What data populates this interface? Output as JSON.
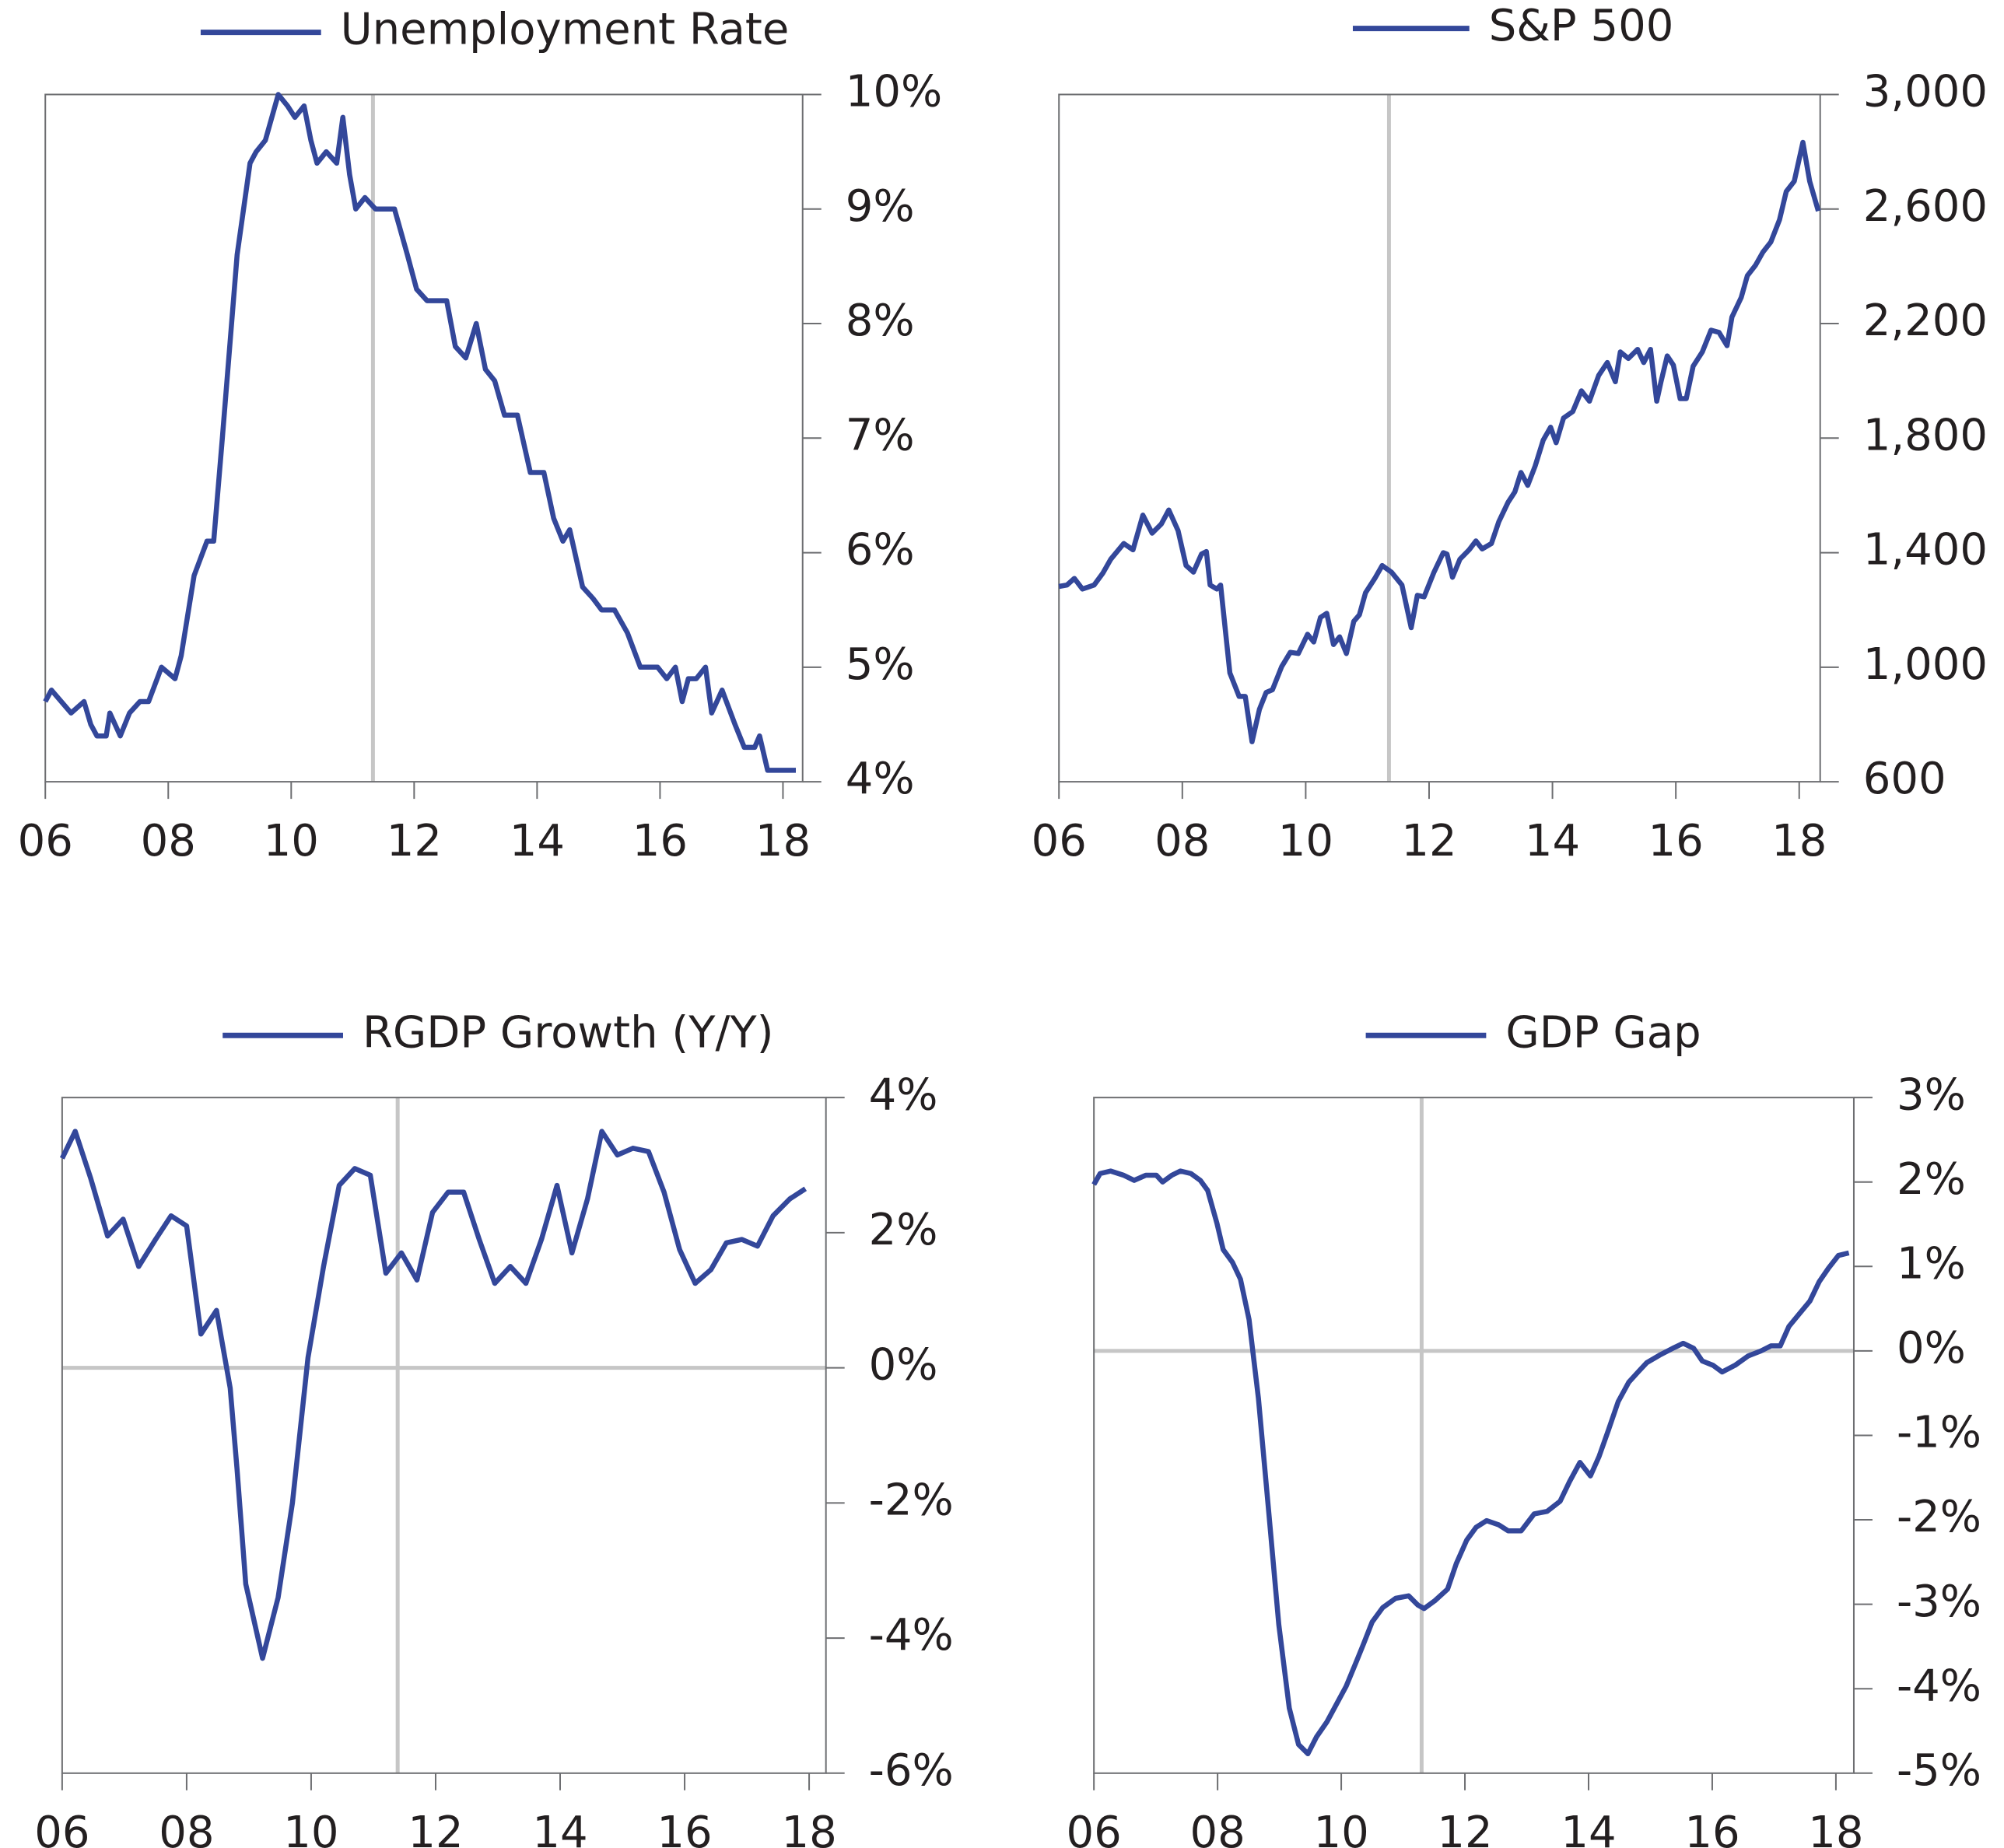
{
  "chart_data": [
    {
      "type": "line",
      "x": [
        6.0,
        6.1,
        6.42,
        6.63,
        6.74,
        6.84,
        6.99,
        7.05,
        7.22,
        7.37,
        7.54,
        7.68,
        7.89,
        8.11,
        8.21,
        8.42,
        8.63,
        8.74,
        8.88,
        9.12,
        9.33,
        9.43,
        9.58,
        9.79,
        9.94,
        10.06,
        10.21,
        10.32,
        10.42,
        10.57,
        10.74,
        10.84,
        10.95,
        11.05,
        11.2,
        11.37,
        11.68,
        11.89,
        12.04,
        12.21,
        12.53,
        12.67,
        12.84,
        13.01,
        13.16,
        13.31,
        13.47,
        13.68,
        13.89,
        14.11,
        14.27,
        14.42,
        14.53,
        14.74,
        14.91,
        15.05,
        15.26,
        15.47,
        15.68,
        15.96,
        16.11,
        16.25,
        16.36,
        16.46,
        16.59,
        16.74,
        16.84,
        17.01,
        17.22,
        17.37,
        17.54,
        17.62,
        17.75,
        18.21
      ],
      "series": [
        {
          "name": "Unemployment Rate",
          "color": "#33479a",
          "values": [
            4.7,
            4.8,
            4.6,
            4.7,
            4.5,
            4.4,
            4.4,
            4.6,
            4.4,
            4.6,
            4.7,
            4.7,
            5.0,
            4.9,
            5.1,
            5.8,
            6.1,
            6.1,
            7.0,
            8.6,
            9.4,
            9.5,
            9.6,
            10.0,
            9.9,
            9.8,
            9.9,
            9.6,
            9.4,
            9.5,
            9.4,
            9.8,
            9.3,
            9.0,
            9.1,
            9.0,
            9.0,
            8.6,
            8.3,
            8.2,
            8.2,
            7.8,
            7.7,
            8.0,
            7.6,
            7.5,
            7.2,
            7.2,
            6.7,
            6.7,
            6.3,
            6.1,
            6.2,
            5.7,
            5.6,
            5.5,
            5.5,
            5.3,
            5.0,
            5.0,
            4.9,
            5.0,
            4.7,
            4.9,
            4.9,
            5.0,
            4.6,
            4.8,
            4.5,
            4.3,
            4.3,
            4.4,
            4.1,
            4.1
          ]
        }
      ],
      "xlim": [
        6,
        18.32
      ],
      "xticks": [
        {
          "value": 6,
          "label": "06"
        },
        {
          "value": 8,
          "label": "08"
        },
        10,
        12,
        14,
        16,
        18
      ],
      "ylim": [
        4,
        10
      ],
      "yticks": [
        {
          "value": 4,
          "label": "4%"
        },
        {
          "value": 5,
          "label": "5%"
        },
        {
          "value": 6,
          "label": "6%"
        },
        {
          "value": 7,
          "label": "7%"
        },
        {
          "value": 8,
          "label": "8%"
        },
        {
          "value": 9,
          "label": "9%"
        },
        {
          "value": 10,
          "label": "10%"
        }
      ],
      "vline": 11.33,
      "legend": "top"
    },
    {
      "type": "line",
      "x": [
        6.0,
        6.13,
        6.25,
        6.38,
        6.57,
        6.71,
        6.84,
        7.05,
        7.2,
        7.36,
        7.51,
        7.66,
        7.78,
        7.93,
        8.06,
        8.18,
        8.31,
        8.39,
        8.45,
        8.56,
        8.62,
        8.77,
        8.92,
        9.02,
        9.13,
        9.25,
        9.36,
        9.46,
        9.61,
        9.75,
        9.88,
        10.03,
        10.13,
        10.24,
        10.34,
        10.45,
        10.55,
        10.66,
        10.78,
        10.87,
        10.97,
        11.12,
        11.24,
        11.39,
        11.56,
        11.71,
        11.81,
        11.92,
        12.08,
        12.23,
        12.29,
        12.38,
        12.5,
        12.65,
        12.76,
        12.86,
        13.01,
        13.13,
        13.28,
        13.39,
        13.49,
        13.6,
        13.72,
        13.85,
        13.97,
        14.06,
        14.18,
        14.33,
        14.47,
        14.6,
        14.75,
        14.89,
        15.02,
        15.1,
        15.23,
        15.38,
        15.48,
        15.59,
        15.69,
        15.76,
        15.86,
        15.96,
        16.07,
        16.17,
        16.28,
        16.43,
        16.57,
        16.7,
        16.83,
        16.91,
        17.06,
        17.16,
        17.29,
        17.41,
        17.54,
        17.68,
        17.79,
        17.92,
        18.06,
        18.17,
        18.31
      ],
      "series": [
        {
          "name": "S&P 500",
          "color": "#33479a",
          "values": [
            1282,
            1287,
            1310,
            1273,
            1287,
            1328,
            1377,
            1432,
            1410,
            1531,
            1468,
            1500,
            1549,
            1477,
            1355,
            1332,
            1395,
            1404,
            1287,
            1273,
            1287,
            980,
            898,
            898,
            740,
            853,
            912,
            921,
            1002,
            1052,
            1048,
            1115,
            1088,
            1174,
            1188,
            1079,
            1106,
            1048,
            1160,
            1183,
            1260,
            1310,
            1355,
            1332,
            1287,
            1138,
            1251,
            1246,
            1332,
            1400,
            1395,
            1314,
            1377,
            1410,
            1441,
            1413,
            1432,
            1508,
            1576,
            1612,
            1680,
            1635,
            1703,
            1793,
            1838,
            1784,
            1870,
            1893,
            1965,
            1929,
            2019,
            2064,
            1997,
            2101,
            2078,
            2110,
            2064,
            2110,
            1929,
            1997,
            2087,
            2055,
            1938,
            1938,
            2051,
            2101,
            2177,
            2169,
            2123,
            2223,
            2291,
            2367,
            2403,
            2449,
            2485,
            2562,
            2661,
            2697,
            2833,
            2697,
            2593
          ]
        }
      ],
      "xlim": [
        6,
        18.34
      ],
      "xticks": [
        {
          "value": 6,
          "label": "06"
        },
        {
          "value": 8,
          "label": "08"
        },
        10,
        12,
        14,
        16,
        18
      ],
      "ylim": [
        600,
        3000
      ],
      "yticks": [
        600,
        {
          "value": 1000,
          "label": "1,000"
        },
        {
          "value": 1400,
          "label": "1,400"
        },
        {
          "value": 1800,
          "label": "1,800"
        },
        {
          "value": 2200,
          "label": "2,200"
        },
        {
          "value": 2600,
          "label": "2,600"
        },
        {
          "value": 3000,
          "label": "3,000"
        }
      ],
      "vline": 11.35,
      "legend": "top"
    },
    {
      "type": "line",
      "x": [
        6.0,
        6.21,
        6.46,
        6.73,
        6.98,
        7.23,
        7.5,
        7.75,
        8.0,
        8.23,
        8.48,
        8.7,
        8.81,
        8.95,
        9.22,
        9.47,
        9.7,
        9.95,
        10.2,
        10.45,
        10.7,
        10.95,
        11.2,
        11.45,
        11.7,
        11.95,
        12.2,
        12.45,
        12.7,
        12.95,
        13.2,
        13.45,
        13.7,
        13.95,
        14.19,
        14.44,
        14.67,
        14.92,
        15.17,
        15.42,
        15.67,
        15.92,
        16.17,
        16.42,
        16.67,
        16.92,
        17.17,
        17.42,
        17.69,
        17.94
      ],
      "series": [
        {
          "name": "RGDP Growth (Y/Y)",
          "color": "#33479a",
          "values": [
            3.1,
            3.5,
            2.8,
            1.95,
            2.2,
            1.5,
            1.9,
            2.25,
            2.1,
            0.5,
            0.85,
            -0.3,
            -1.5,
            -3.2,
            -4.3,
            -3.4,
            -2.0,
            0.15,
            1.5,
            2.7,
            2.95,
            2.85,
            1.4,
            1.7,
            1.3,
            2.3,
            2.6,
            2.6,
            1.9,
            1.25,
            1.5,
            1.25,
            1.9,
            2.7,
            1.7,
            2.5,
            3.5,
            3.15,
            3.25,
            3.2,
            2.6,
            1.75,
            1.25,
            1.45,
            1.85,
            1.9,
            1.8,
            2.25,
            2.5,
            2.65
          ]
        }
      ],
      "xlim": [
        6,
        18.27
      ],
      "xticks": [
        {
          "value": 6,
          "label": "06"
        },
        {
          "value": 8,
          "label": "08"
        },
        10,
        12,
        14,
        16,
        18
      ],
      "ylim": [
        -6,
        4
      ],
      "yticks": [
        {
          "value": -6,
          "label": "-6%"
        },
        {
          "value": -4,
          "label": "-4%"
        },
        {
          "value": -2,
          "label": "-2%"
        },
        {
          "value": 0,
          "label": "0%"
        },
        {
          "value": 2,
          "label": "2%"
        },
        {
          "value": 4,
          "label": "4%"
        }
      ],
      "vline": 11.39,
      "hline": 0,
      "legend": "top"
    },
    {
      "type": "line",
      "x": [
        6.0,
        6.1,
        6.27,
        6.48,
        6.65,
        6.84,
        7.01,
        7.11,
        7.26,
        7.4,
        7.57,
        7.72,
        7.84,
        7.99,
        8.09,
        8.24,
        8.37,
        8.51,
        8.66,
        8.83,
        8.99,
        9.16,
        9.31,
        9.46,
        9.6,
        9.77,
        9.94,
        10.08,
        10.25,
        10.36,
        10.5,
        10.67,
        10.88,
        11.09,
        11.24,
        11.34,
        11.51,
        11.72,
        11.86,
        12.03,
        12.18,
        12.35,
        12.55,
        12.7,
        12.91,
        13.12,
        13.33,
        13.54,
        13.69,
        13.86,
        14.03,
        14.17,
        14.32,
        14.48,
        14.65,
        14.8,
        14.94,
        15.15,
        15.36,
        15.53,
        15.7,
        15.84,
        16.01,
        16.16,
        16.37,
        16.58,
        16.79,
        16.95,
        17.1,
        17.24,
        17.41,
        17.58,
        17.73,
        17.88,
        18.04,
        18.21
      ],
      "series": [
        {
          "name": "GDP Gap",
          "color": "#33479a",
          "values": [
            1.97,
            2.1,
            2.13,
            2.08,
            2.02,
            2.08,
            2.08,
            2.0,
            2.08,
            2.13,
            2.1,
            2.02,
            1.9,
            1.51,
            1.2,
            1.05,
            0.85,
            0.37,
            -0.56,
            -1.93,
            -3.24,
            -4.23,
            -4.66,
            -4.77,
            -4.57,
            -4.39,
            -4.16,
            -3.97,
            -3.67,
            -3.47,
            -3.21,
            -3.04,
            -2.93,
            -2.9,
            -3.01,
            -3.05,
            -2.96,
            -2.82,
            -2.52,
            -2.24,
            -2.09,
            -2.01,
            -2.06,
            -2.13,
            -2.13,
            -1.93,
            -1.9,
            -1.78,
            -1.55,
            -1.32,
            -1.48,
            -1.25,
            -0.94,
            -0.6,
            -0.37,
            -0.25,
            -0.14,
            -0.05,
            0.03,
            0.09,
            0.03,
            -0.12,
            -0.17,
            -0.25,
            -0.17,
            -0.06,
            0.0,
            0.06,
            0.06,
            0.29,
            0.44,
            0.59,
            0.82,
            0.98,
            1.13,
            1.16
          ]
        }
      ],
      "xlim": [
        6,
        18.29
      ],
      "xticks": [
        {
          "value": 6,
          "label": "06"
        },
        {
          "value": 8,
          "label": "08"
        },
        10,
        12,
        14,
        16,
        18
      ],
      "ylim": [
        -5,
        3
      ],
      "yticks": [
        {
          "value": -5,
          "label": "-5%"
        },
        {
          "value": -4,
          "label": "-4%"
        },
        {
          "value": -3,
          "label": "-3%"
        },
        {
          "value": -2,
          "label": "-2%"
        },
        {
          "value": -1,
          "label": "-1%"
        },
        {
          "value": 0,
          "label": "0%"
        },
        {
          "value": 1,
          "label": "1%"
        },
        {
          "value": 2,
          "label": "2%"
        },
        {
          "value": 3,
          "label": "3%"
        }
      ],
      "vline": 11.3,
      "hline": 0,
      "legend": "top"
    }
  ]
}
